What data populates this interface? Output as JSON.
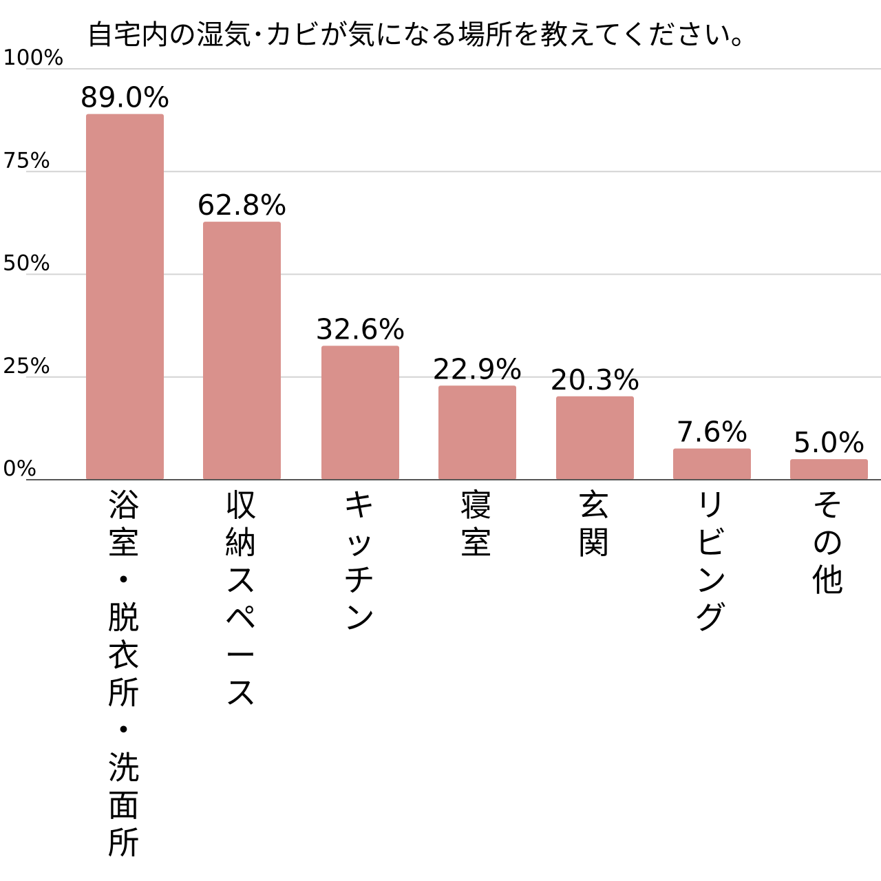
{
  "chart_data": {
    "type": "bar",
    "title": "自宅内の湿気･カビが気になる場所を教えてください。",
    "xlabel": "",
    "ylabel": "",
    "categories": [
      "浴室・脱衣所・洗面所",
      "収納スペース",
      "キッチン",
      "寝室",
      "玄関",
      "リビング",
      "その他"
    ],
    "values": [
      89.0,
      62.8,
      32.6,
      22.9,
      20.3,
      7.6,
      5.0
    ],
    "data_labels": [
      "89.0%",
      "62.8%",
      "32.6%",
      "22.9%",
      "20.3%",
      "7.6%",
      "5.0%"
    ],
    "ylim": [
      0,
      100
    ],
    "yticks": [
      0,
      25,
      50,
      75,
      100
    ],
    "ytick_labels": [
      "0%",
      "25%",
      "50%",
      "75%",
      "100%"
    ],
    "grid": true,
    "legend": "none",
    "colors": {
      "bar": "#d9918c",
      "grid": "#d4d4d4",
      "baseline": "#555555",
      "text": "#000000"
    }
  }
}
